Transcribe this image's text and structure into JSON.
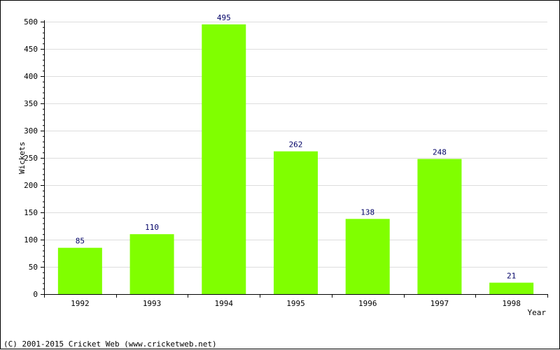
{
  "chart_data": {
    "type": "bar",
    "categories": [
      "1992",
      "1993",
      "1994",
      "1995",
      "1996",
      "1997",
      "1998"
    ],
    "values": [
      85,
      110,
      495,
      262,
      138,
      248,
      21
    ],
    "xlabel": "Year",
    "ylabel": "Wickets",
    "ylim": [
      0,
      500
    ],
    "yticks": [
      0,
      50,
      100,
      150,
      200,
      250,
      300,
      350,
      400,
      450,
      500
    ],
    "grid": true,
    "data_labels": true,
    "bar_color": "#80ff00",
    "grid_color": "#dddddd"
  },
  "footer": {
    "copyright": "(C) 2001-2015 Cricket Web (www.cricketweb.net)"
  }
}
